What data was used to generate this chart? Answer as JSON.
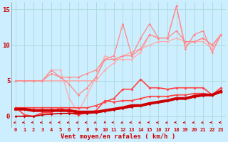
{
  "title": "",
  "xlabel": "Vent moyen/en rafales ( km/h )",
  "ylabel": "",
  "bg_color": "#cceeff",
  "grid_color": "#aadddd",
  "xlim": [
    -0.5,
    23.5
  ],
  "ylim": [
    -1.5,
    16
  ],
  "x": [
    0,
    1,
    2,
    3,
    4,
    5,
    6,
    7,
    8,
    9,
    10,
    11,
    12,
    13,
    14,
    15,
    16,
    17,
    18,
    19,
    20,
    21,
    22,
    23
  ],
  "series": [
    {
      "y": [
        5.0,
        5.0,
        5.0,
        5.0,
        5.0,
        5.0,
        5.0,
        5.0,
        5.0,
        5.0,
        6.5,
        7.5,
        8.5,
        9.0,
        9.5,
        10.0,
        10.5,
        10.5,
        11.0,
        10.5,
        10.5,
        11.0,
        10.0,
        11.5
      ],
      "color": "#ffaaaa",
      "lw": 0.9,
      "marker": "D",
      "ms": 1.8,
      "zorder": 2
    },
    {
      "y": [
        5.0,
        5.0,
        5.0,
        5.0,
        6.5,
        6.5,
        2.5,
        0.5,
        3.0,
        5.5,
        8.5,
        8.0,
        8.0,
        8.0,
        9.0,
        11.5,
        11.0,
        11.0,
        15.5,
        10.0,
        10.5,
        10.5,
        9.5,
        11.5
      ],
      "color": "#ffaaaa",
      "lw": 0.9,
      "marker": "D",
      "ms": 1.8,
      "zorder": 2
    },
    {
      "y": [
        5.0,
        5.0,
        5.0,
        5.0,
        6.5,
        5.5,
        5.5,
        5.5,
        6.0,
        6.5,
        8.0,
        8.5,
        13.0,
        8.5,
        11.0,
        13.0,
        11.0,
        11.0,
        15.5,
        9.5,
        11.5,
        12.0,
        9.0,
        11.5
      ],
      "color": "#ff8888",
      "lw": 0.9,
      "marker": "D",
      "ms": 1.8,
      "zorder": 3
    },
    {
      "y": [
        5.0,
        5.0,
        5.0,
        5.0,
        6.0,
        5.5,
        4.5,
        3.0,
        4.0,
        5.5,
        8.0,
        8.0,
        8.5,
        8.5,
        9.5,
        11.5,
        11.0,
        11.0,
        12.0,
        10.5,
        10.5,
        11.0,
        10.0,
        11.5
      ],
      "color": "#ff8888",
      "lw": 0.9,
      "marker": "D",
      "ms": 1.8,
      "zorder": 3
    },
    {
      "y": [
        1.2,
        1.2,
        1.2,
        1.2,
        1.2,
        1.2,
        1.2,
        1.2,
        1.2,
        1.5,
        2.0,
        2.5,
        3.8,
        3.8,
        5.2,
        4.0,
        4.0,
        3.8,
        4.0,
        4.0,
        4.0,
        4.0,
        3.0,
        4.0
      ],
      "color": "#ff4444",
      "lw": 1.2,
      "marker": "D",
      "ms": 2.0,
      "zorder": 4
    },
    {
      "y": [
        1.2,
        0.2,
        0.0,
        0.5,
        0.5,
        1.2,
        0.5,
        0.2,
        0.5,
        0.8,
        2.2,
        2.0,
        2.2,
        2.2,
        2.5,
        2.8,
        2.8,
        2.8,
        3.0,
        3.0,
        3.2,
        3.2,
        3.0,
        4.0
      ],
      "color": "#ff4444",
      "lw": 1.2,
      "marker": "D",
      "ms": 2.0,
      "zorder": 4
    },
    {
      "y": [
        1.0,
        1.0,
        0.8,
        0.8,
        0.8,
        0.8,
        0.8,
        0.6,
        0.6,
        0.6,
        0.8,
        1.0,
        1.2,
        1.5,
        1.5,
        1.8,
        2.0,
        2.2,
        2.5,
        2.5,
        2.8,
        3.0,
        3.0,
        3.5
      ],
      "color": "#cc0000",
      "lw": 2.8,
      "marker": "D",
      "ms": 2.0,
      "zorder": 5
    },
    {
      "y": [
        0.0,
        0.0,
        0.0,
        0.2,
        0.3,
        0.4,
        0.4,
        0.4,
        0.4,
        0.5,
        0.7,
        0.9,
        1.1,
        1.3,
        1.5,
        1.7,
        2.0,
        2.2,
        2.4,
        2.5,
        2.7,
        2.9,
        3.0,
        3.4
      ],
      "color": "#cc0000",
      "lw": 1.2,
      "marker": "D",
      "ms": 1.8,
      "zorder": 5
    }
  ],
  "yticks": [
    0,
    5,
    10,
    15
  ],
  "xticks": [
    0,
    1,
    2,
    3,
    4,
    5,
    6,
    7,
    8,
    9,
    10,
    11,
    12,
    13,
    14,
    15,
    16,
    17,
    18,
    19,
    20,
    21,
    22,
    23
  ],
  "arrow_angles": [
    210,
    200,
    195,
    200,
    205,
    195,
    200,
    205,
    200,
    210,
    90,
    195,
    210,
    200,
    205,
    195,
    200,
    210,
    195,
    200,
    205,
    210,
    195,
    200
  ]
}
